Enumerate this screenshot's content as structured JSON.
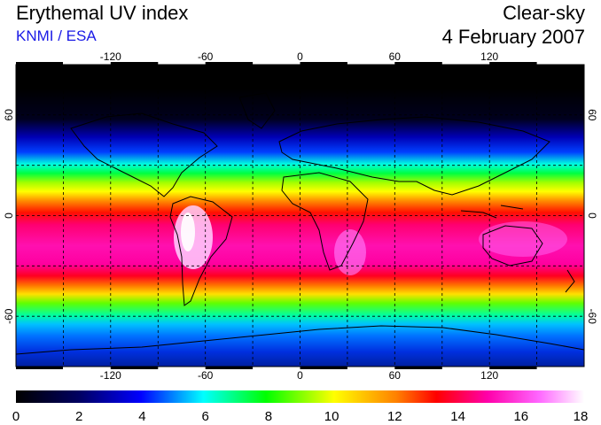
{
  "header": {
    "title": "Erythemal UV index",
    "source": "KNMI / ESA",
    "sky_condition": "Clear-sky",
    "date": "4 February 2007"
  },
  "map": {
    "projection": "equirectangular",
    "lon_range": [
      -180,
      180
    ],
    "lat_range": [
      -90,
      90
    ],
    "lon_ticks": [
      "-120",
      "-60",
      "0",
      "60",
      "120"
    ],
    "lat_ticks": [
      "60",
      "0",
      "-60"
    ],
    "gridlines": "dashed every 30 degrees"
  },
  "colorbar": {
    "min": 0,
    "max": 18,
    "labels": [
      "0",
      "2",
      "4",
      "6",
      "8",
      "10",
      "12",
      "14",
      "16",
      "18"
    ],
    "colors": [
      "#000000",
      "#0000ff",
      "#00ffff",
      "#00ff00",
      "#ffff00",
      "#ff8000",
      "#ff0000",
      "#ff00aa",
      "#ff66ff",
      "#ffffff"
    ]
  }
}
